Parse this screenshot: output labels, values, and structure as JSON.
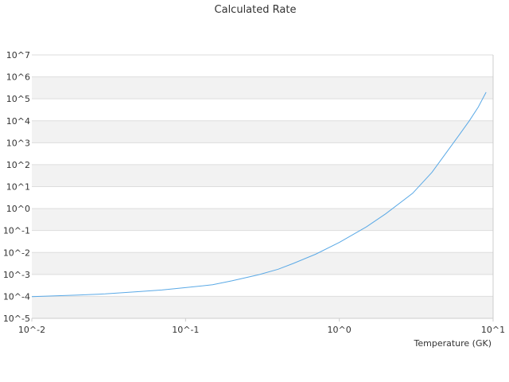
{
  "chart_data": {
    "type": "line",
    "title": "Calculated Rate",
    "xlabel": "Temperature (GK)",
    "ylabel": "",
    "xscale": "log",
    "yscale": "log",
    "xlim": [
      0.01,
      10
    ],
    "ylim": [
      1e-05,
      10000000
    ],
    "grid": "horizontal alternating bands",
    "legend": "none",
    "x_tick_labels": [
      "10^-2",
      "10^-1",
      "10^0",
      "10^1"
    ],
    "y_tick_labels": [
      "10^-5",
      "10^-4",
      "10^-3",
      "10^-2",
      "10^-1",
      "10^0",
      "10^1",
      "10^2",
      "10^3",
      "10^4",
      "10^5",
      "10^6",
      "10^7"
    ],
    "series": [
      {
        "color": "#5aa9e6",
        "x": [
          0.01,
          0.02,
          0.03,
          0.05,
          0.07,
          0.1,
          0.15,
          0.2,
          0.3,
          0.4,
          0.5,
          0.7,
          1.0,
          1.5,
          2.0,
          3.0,
          4.0,
          5.0,
          6.0,
          7.0,
          8.0,
          9.0
        ],
        "y": [
          9.7e-05,
          0.000115,
          0.00013,
          0.000165,
          0.000195,
          0.00025,
          0.00034,
          0.00051,
          0.00098,
          0.00173,
          0.00316,
          0.0083,
          0.0288,
          0.146,
          0.575,
          5.0,
          44.7,
          380,
          2190,
          10000,
          42000,
          200000
        ]
      }
    ]
  },
  "colors": {
    "band": "#f2f2f2",
    "grid": "#dddddd",
    "axis": "#cccccc",
    "line": "#5aa9e6"
  }
}
